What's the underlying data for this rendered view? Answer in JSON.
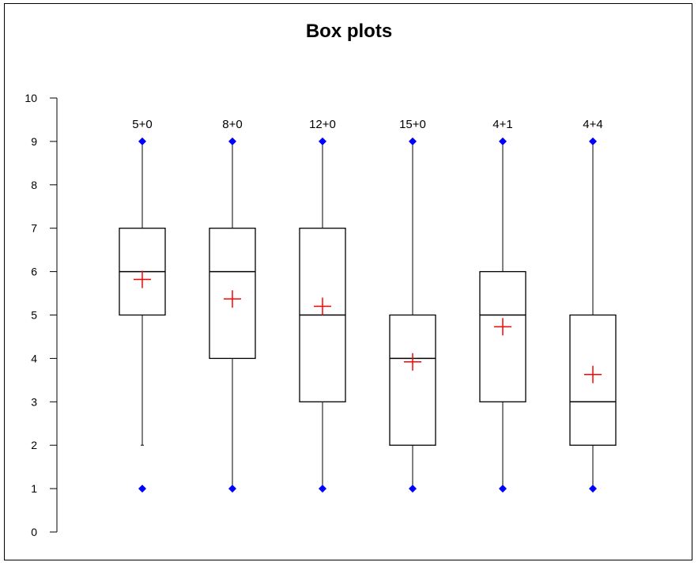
{
  "chart_data": {
    "type": "box",
    "title": "Box plots",
    "xlabel": "",
    "ylabel": "",
    "ylim": [
      0,
      10
    ],
    "yticks": [
      "0",
      "1",
      "2",
      "3",
      "4",
      "5",
      "6",
      "7",
      "8",
      "9",
      "10"
    ],
    "grid": false,
    "legend": "none",
    "categories": [
      "5+0",
      "8+0",
      "12+0",
      "15+0",
      "4+1",
      "4+4"
    ],
    "boxes": [
      {
        "label": "5+0",
        "whisker_low": 2,
        "q1": 5,
        "median": 6,
        "q3": 7,
        "whisker_high": 9,
        "mean": 5.82,
        "outliers": [
          1,
          9
        ]
      },
      {
        "label": "8+0",
        "whisker_low": 1,
        "q1": 4,
        "median": 6,
        "q3": 7,
        "whisker_high": 9,
        "mean": 5.37,
        "outliers": [
          1,
          9
        ]
      },
      {
        "label": "12+0",
        "whisker_low": 1,
        "q1": 3,
        "median": 5,
        "q3": 7,
        "whisker_high": 9,
        "mean": 5.2,
        "outliers": [
          1,
          9
        ]
      },
      {
        "label": "15+0",
        "whisker_low": 1,
        "q1": 2,
        "median": 4,
        "q3": 5,
        "whisker_high": 9,
        "mean": 3.92,
        "outliers": [
          1,
          9
        ]
      },
      {
        "label": "4+1",
        "whisker_low": 1,
        "q1": 3,
        "median": 5,
        "q3": 6,
        "whisker_high": 9,
        "mean": 4.73,
        "outliers": [
          1,
          9
        ]
      },
      {
        "label": "4+4",
        "whisker_low": 1,
        "q1": 2,
        "median": 3,
        "q3": 5,
        "whisker_high": 9,
        "mean": 3.63,
        "outliers": [
          1,
          9
        ]
      }
    ],
    "colors": {
      "box_stroke": "#000000",
      "mean_marker": "#ff0000",
      "outlier_marker": "#0000ff"
    }
  }
}
